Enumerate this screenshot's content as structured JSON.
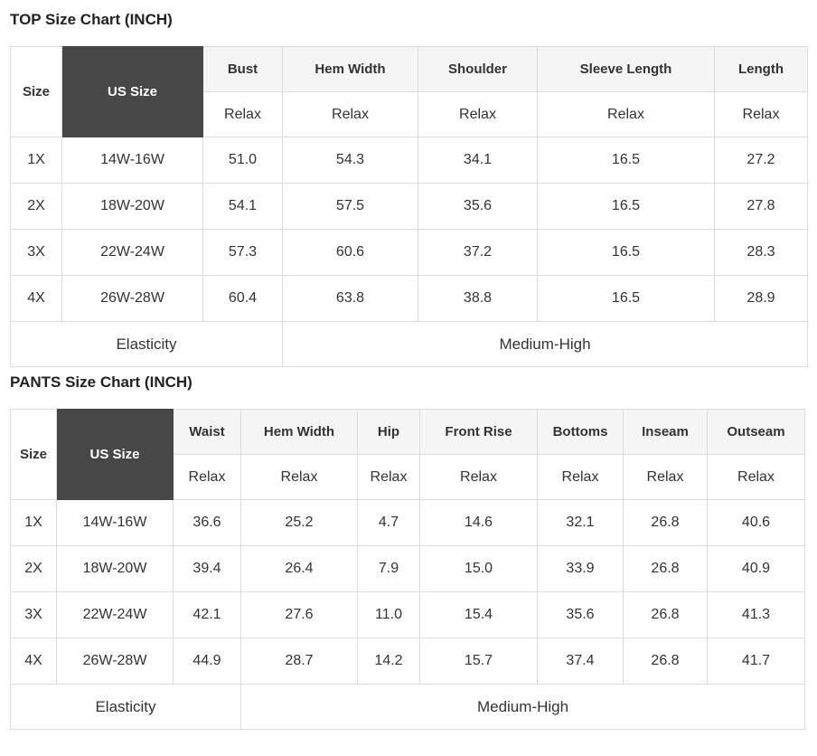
{
  "top_chart": {
    "title": "TOP Size Chart (INCH)",
    "size_header": "Size",
    "us_size_header": "US Size",
    "fit_label": "Relax",
    "columns": [
      "Bust",
      "Hem Width",
      "Shoulder",
      "Sleeve Length",
      "Length"
    ],
    "rows": [
      {
        "size": "1X",
        "us_size": "14W-16W",
        "values": [
          "51.0",
          "54.3",
          "34.1",
          "16.5",
          "27.2"
        ]
      },
      {
        "size": "2X",
        "us_size": "18W-20W",
        "values": [
          "54.1",
          "57.5",
          "35.6",
          "16.5",
          "27.8"
        ]
      },
      {
        "size": "3X",
        "us_size": "22W-24W",
        "values": [
          "57.3",
          "60.6",
          "37.2",
          "16.5",
          "28.3"
        ]
      },
      {
        "size": "4X",
        "us_size": "26W-28W",
        "values": [
          "60.4",
          "63.8",
          "38.8",
          "16.5",
          "28.9"
        ]
      }
    ],
    "footer": {
      "label": "Elasticity",
      "value": "Medium-High"
    }
  },
  "pants_chart": {
    "title": "PANTS Size Chart (INCH)",
    "size_header": "Size",
    "us_size_header": "US Size",
    "fit_label": "Relax",
    "columns": [
      "Waist",
      "Hem Width",
      "Hip",
      "Front Rise",
      "Bottoms",
      "Inseam",
      "Outseam"
    ],
    "rows": [
      {
        "size": "1X",
        "us_size": "14W-16W",
        "values": [
          "36.6",
          "25.2",
          "4.7",
          "14.6",
          "32.1",
          "26.8",
          "40.6"
        ]
      },
      {
        "size": "2X",
        "us_size": "18W-20W",
        "values": [
          "39.4",
          "26.4",
          "7.9",
          "15.0",
          "33.9",
          "26.8",
          "40.9"
        ]
      },
      {
        "size": "3X",
        "us_size": "22W-24W",
        "values": [
          "42.1",
          "27.6",
          "11.0",
          "15.4",
          "35.6",
          "26.8",
          "41.3"
        ]
      },
      {
        "size": "4X",
        "us_size": "26W-28W",
        "values": [
          "44.9",
          "28.7",
          "14.2",
          "15.7",
          "37.4",
          "26.8",
          "41.7"
        ]
      }
    ],
    "footer": {
      "label": "Elasticity",
      "value": "Medium-High"
    }
  },
  "colors": {
    "header_dark_bg": "#474747",
    "header_dark_text": "#ffffff",
    "header_light_bg": "#f5f5f5",
    "border": "#dddddd",
    "text": "#333333"
  }
}
